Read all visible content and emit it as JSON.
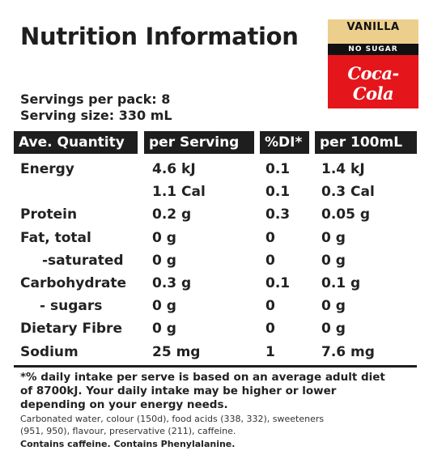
{
  "title": "Nutrition Information",
  "logo": {
    "flavor": "VANILLA",
    "variant": "NO SUGAR",
    "brand": "Coca-Cola",
    "colors": {
      "red": "#e4161b",
      "gold": "#eccf8c",
      "black": "#111111"
    }
  },
  "servings_per_pack": "Servings per pack: 8",
  "serving_size": "Serving size: 330 mL",
  "headers": [
    "Ave. Quantity",
    "per Serving",
    "%DI*",
    "per 100mL"
  ],
  "rows": [
    [
      "Energy",
      "4.6 kJ",
      "0.1",
      "1.4 kJ"
    ],
    [
      "",
      "1.1 Cal",
      "0.1",
      "0.3 Cal"
    ],
    [
      "Protein",
      "0.2 g",
      "0.3",
      "0.05 g"
    ],
    [
      "Fat, total",
      "0 g",
      "0",
      "0 g"
    ],
    [
      "-saturated",
      "0 g",
      "0",
      "0 g"
    ],
    [
      "Carbohydrate",
      "0.3 g",
      "0.1",
      "0.1 g"
    ],
    [
      "- sugars",
      "0 g",
      "0",
      "0 g"
    ],
    [
      "Dietary Fibre",
      "0 g",
      "0",
      "0 g"
    ],
    [
      "Sodium",
      "25 mg",
      "1",
      "7.6 mg"
    ]
  ],
  "footnote": [
    "*% daily intake per serve is based on an average adult diet",
    "of 8700kJ. Your daily intake may be higher or lower",
    "depending on your energy needs."
  ],
  "ingredients": [
    "Carbonated water, colour (150d), food acids (338, 332), sweeteners",
    "(951, 950), flavour, preservative (211), caffeine."
  ],
  "warning": "Contains caffeine. Contains Phenylalanine."
}
